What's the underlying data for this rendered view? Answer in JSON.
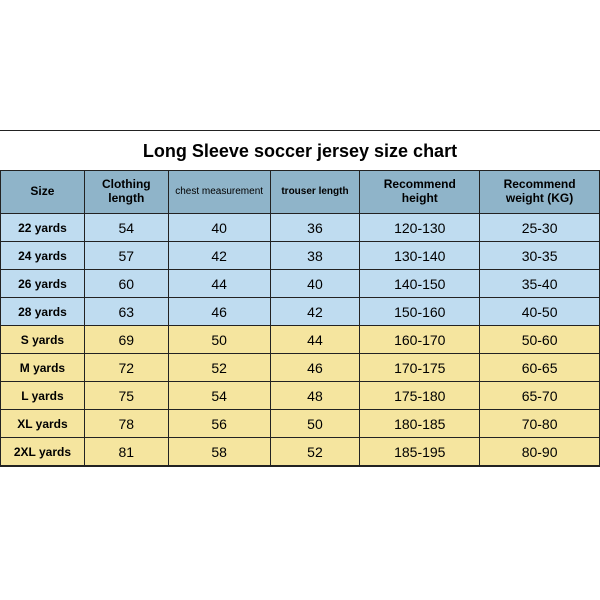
{
  "title": "Long Sleeve soccer jersey size chart",
  "columns": [
    "Size",
    "Clothing length",
    "chest measurement",
    "trouser length",
    "Recommend height",
    "Recommend weight (KG)"
  ],
  "rows": [
    {
      "color": "blue",
      "cells": [
        "22 yards",
        "54",
        "40",
        "36",
        "120-130",
        "25-30"
      ]
    },
    {
      "color": "blue",
      "cells": [
        "24 yards",
        "57",
        "42",
        "38",
        "130-140",
        "30-35"
      ]
    },
    {
      "color": "blue",
      "cells": [
        "26 yards",
        "60",
        "44",
        "40",
        "140-150",
        "35-40"
      ]
    },
    {
      "color": "blue",
      "cells": [
        "28 yards",
        "63",
        "46",
        "42",
        "150-160",
        "40-50"
      ]
    },
    {
      "color": "yellow",
      "cells": [
        "S yards",
        "69",
        "50",
        "44",
        "160-170",
        "50-60"
      ]
    },
    {
      "color": "yellow",
      "cells": [
        "M yards",
        "72",
        "52",
        "46",
        "170-175",
        "60-65"
      ]
    },
    {
      "color": "yellow",
      "cells": [
        "L yards",
        "75",
        "54",
        "48",
        "175-180",
        "65-70"
      ]
    },
    {
      "color": "yellow",
      "cells": [
        "XL yards",
        "78",
        "56",
        "50",
        "180-185",
        "70-80"
      ]
    },
    {
      "color": "yellow",
      "cells": [
        "2XL yards",
        "81",
        "58",
        "52",
        "185-195",
        "80-90"
      ]
    }
  ],
  "colors": {
    "header_bg": "#8fb4c9",
    "blue_row_bg": "#bfdcf0",
    "yellow_row_bg": "#f5e59f",
    "border": "#222222",
    "page_bg": "#ffffff"
  },
  "font": {
    "title_size_pt": 18,
    "header_size_pt": 12,
    "cell_size_pt": 14,
    "size_label_pt": 12
  }
}
